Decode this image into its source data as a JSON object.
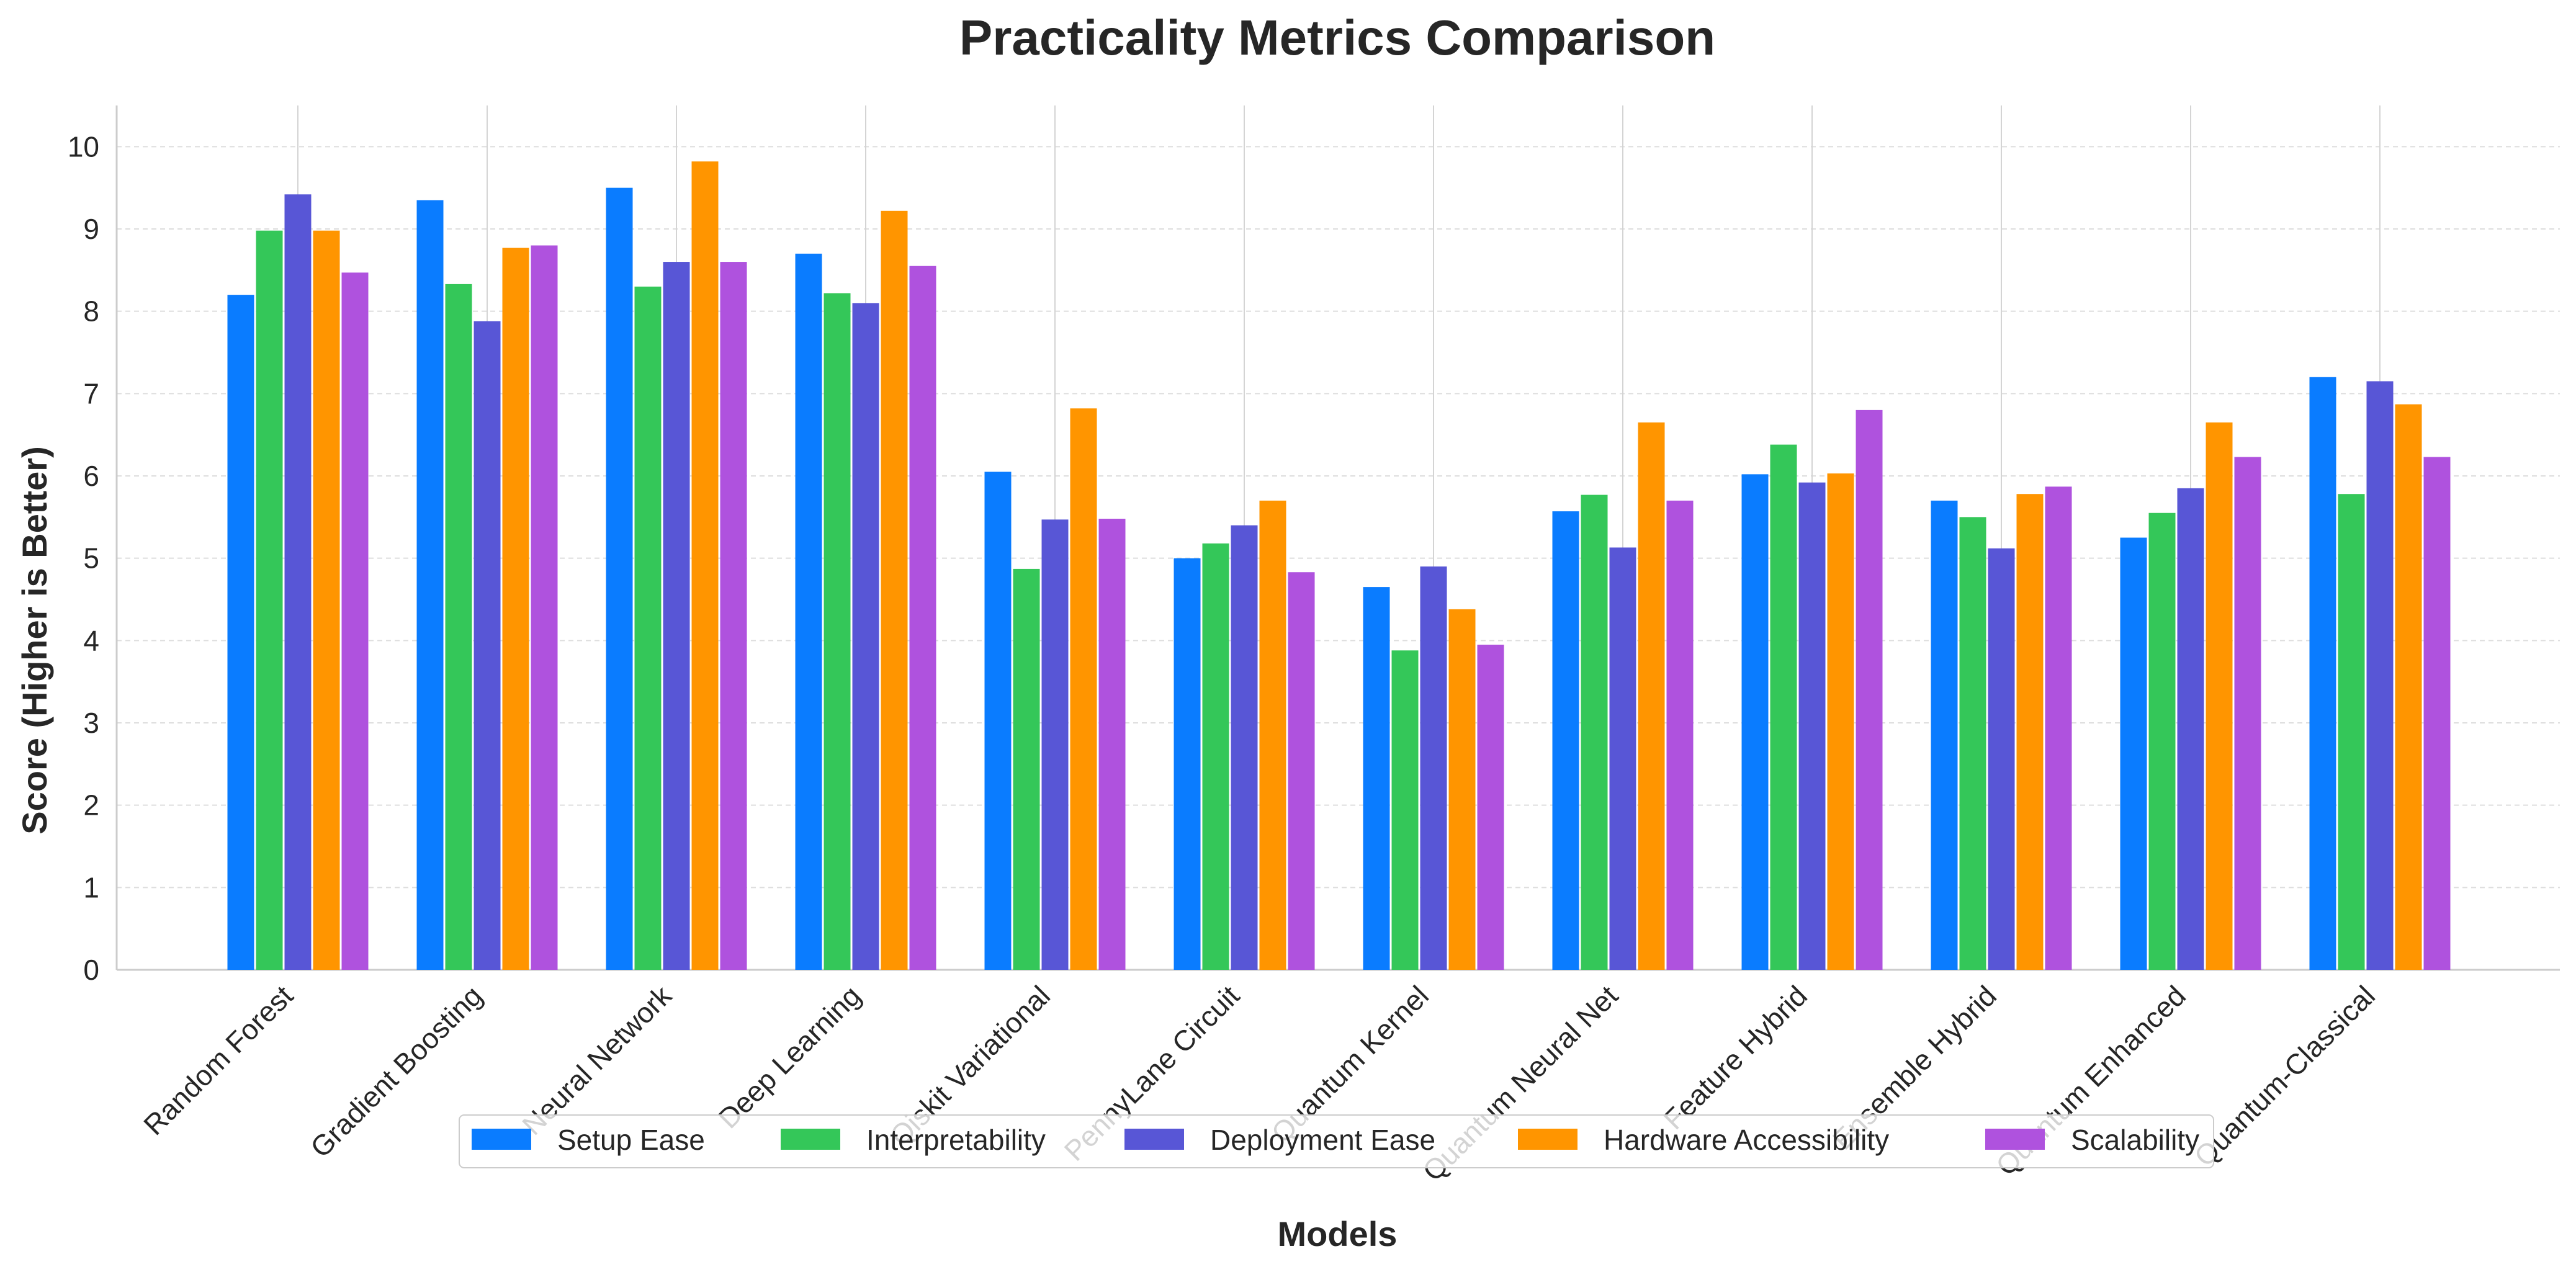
{
  "chart_data": {
    "type": "bar",
    "title": "Practicality Metrics Comparison",
    "xlabel": "Models",
    "ylabel": "Score (Higher is Better)",
    "ylim": [
      0,
      10.5
    ],
    "yticks": [
      0,
      1,
      2,
      3,
      4,
      5,
      6,
      7,
      8,
      9,
      10
    ],
    "grid": true,
    "legend_position": "bottom-center",
    "categories": [
      "Random Forest",
      "Gradient Boosting",
      "Neural Network",
      "Deep Learning",
      "Qiskit Variational",
      "PennyLane Circuit",
      "Quantum Kernel",
      "Quantum Neural Net",
      "Feature Hybrid",
      "Ensemble Hybrid",
      "Quantum Enhanced",
      "Quantum-Classical"
    ],
    "series": [
      {
        "name": "Setup Ease",
        "color": "#0a7cff",
        "values": [
          8.2,
          9.35,
          9.5,
          8.7,
          6.05,
          5.0,
          4.65,
          5.57,
          6.02,
          5.7,
          5.25,
          7.2
        ]
      },
      {
        "name": "Interpretability",
        "color": "#34c759",
        "values": [
          8.98,
          8.33,
          8.3,
          8.22,
          4.87,
          5.18,
          3.88,
          5.77,
          6.38,
          5.5,
          5.55,
          5.78
        ]
      },
      {
        "name": "Deployment Ease",
        "color": "#5856d6",
        "values": [
          9.42,
          7.88,
          8.6,
          8.1,
          5.47,
          5.4,
          4.9,
          5.13,
          5.92,
          5.12,
          5.85,
          7.15
        ]
      },
      {
        "name": "Hardware Accessibility",
        "color": "#ff9500",
        "values": [
          8.98,
          8.77,
          9.82,
          9.22,
          6.82,
          5.7,
          4.38,
          6.65,
          6.03,
          5.78,
          6.65,
          6.87
        ]
      },
      {
        "name": "Scalability",
        "color": "#af52de",
        "values": [
          8.47,
          8.8,
          8.6,
          8.55,
          5.48,
          4.83,
          3.95,
          5.7,
          6.8,
          5.87,
          6.23,
          6.23
        ]
      }
    ]
  }
}
